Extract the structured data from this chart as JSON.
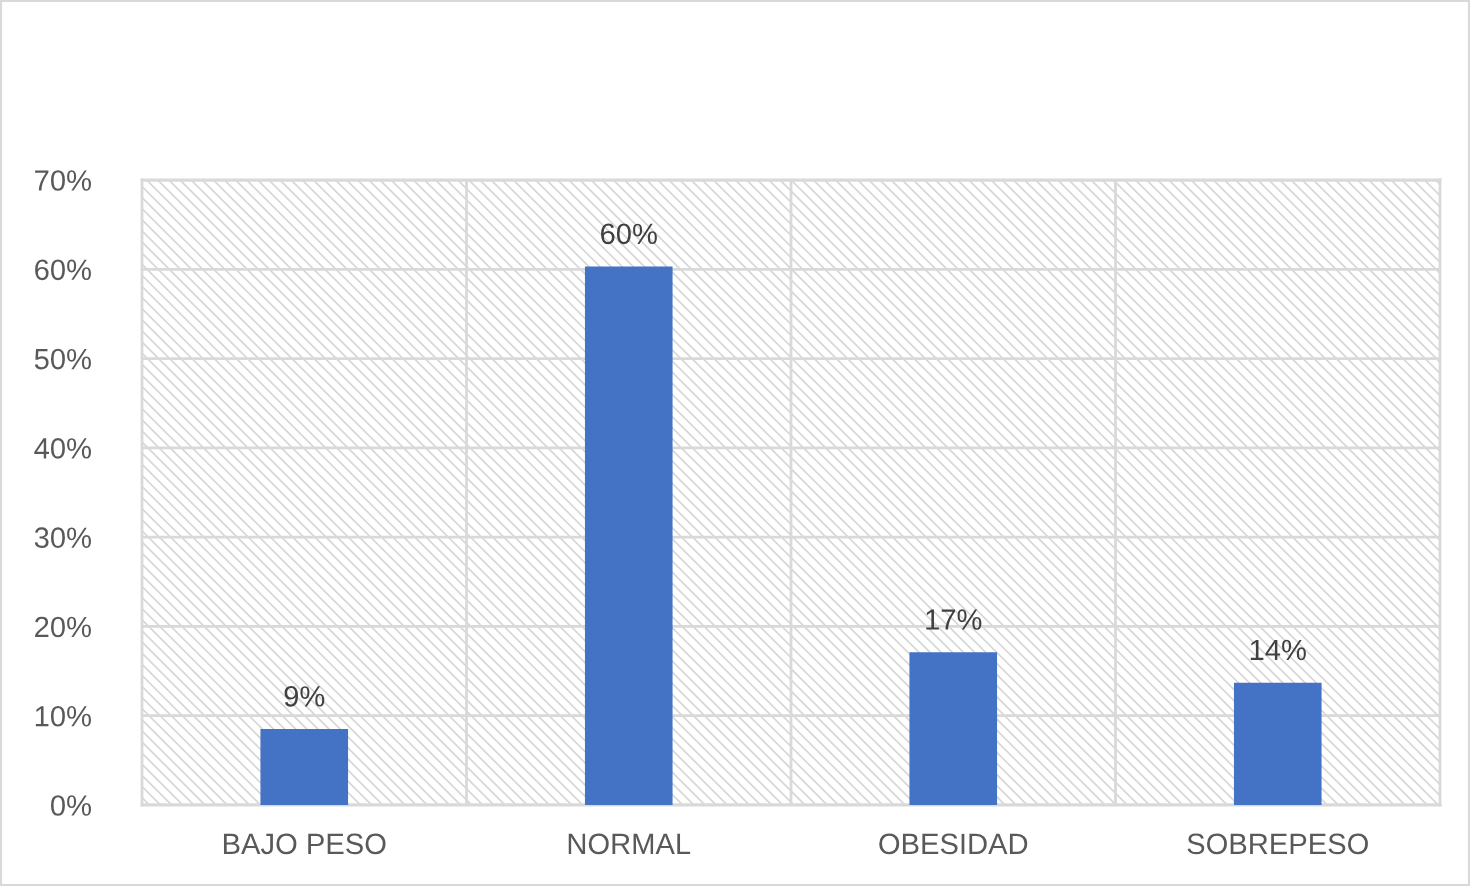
{
  "chart_data": {
    "type": "bar",
    "categories": [
      "BAJO PESO",
      "NORMAL",
      "OBESIDAD",
      "SOBREPESO"
    ],
    "values": [
      8.5,
      60.3,
      17.1,
      13.7
    ],
    "color": "#4472c4",
    "value_labels": [
      "9%",
      "60%",
      "17%",
      "14%"
    ],
    "ylim": [
      0,
      70
    ],
    "yticks": [
      {
        "value": 0,
        "label": "0%"
      },
      {
        "value": 10,
        "label": "10%"
      },
      {
        "value": 20,
        "label": "20%"
      },
      {
        "value": 30,
        "label": "30%"
      },
      {
        "value": 40,
        "label": "40%"
      },
      {
        "value": 50,
        "label": "50%"
      },
      {
        "value": 60,
        "label": "60%"
      },
      {
        "value": 70,
        "label": "70%"
      }
    ],
    "grid": true
  }
}
